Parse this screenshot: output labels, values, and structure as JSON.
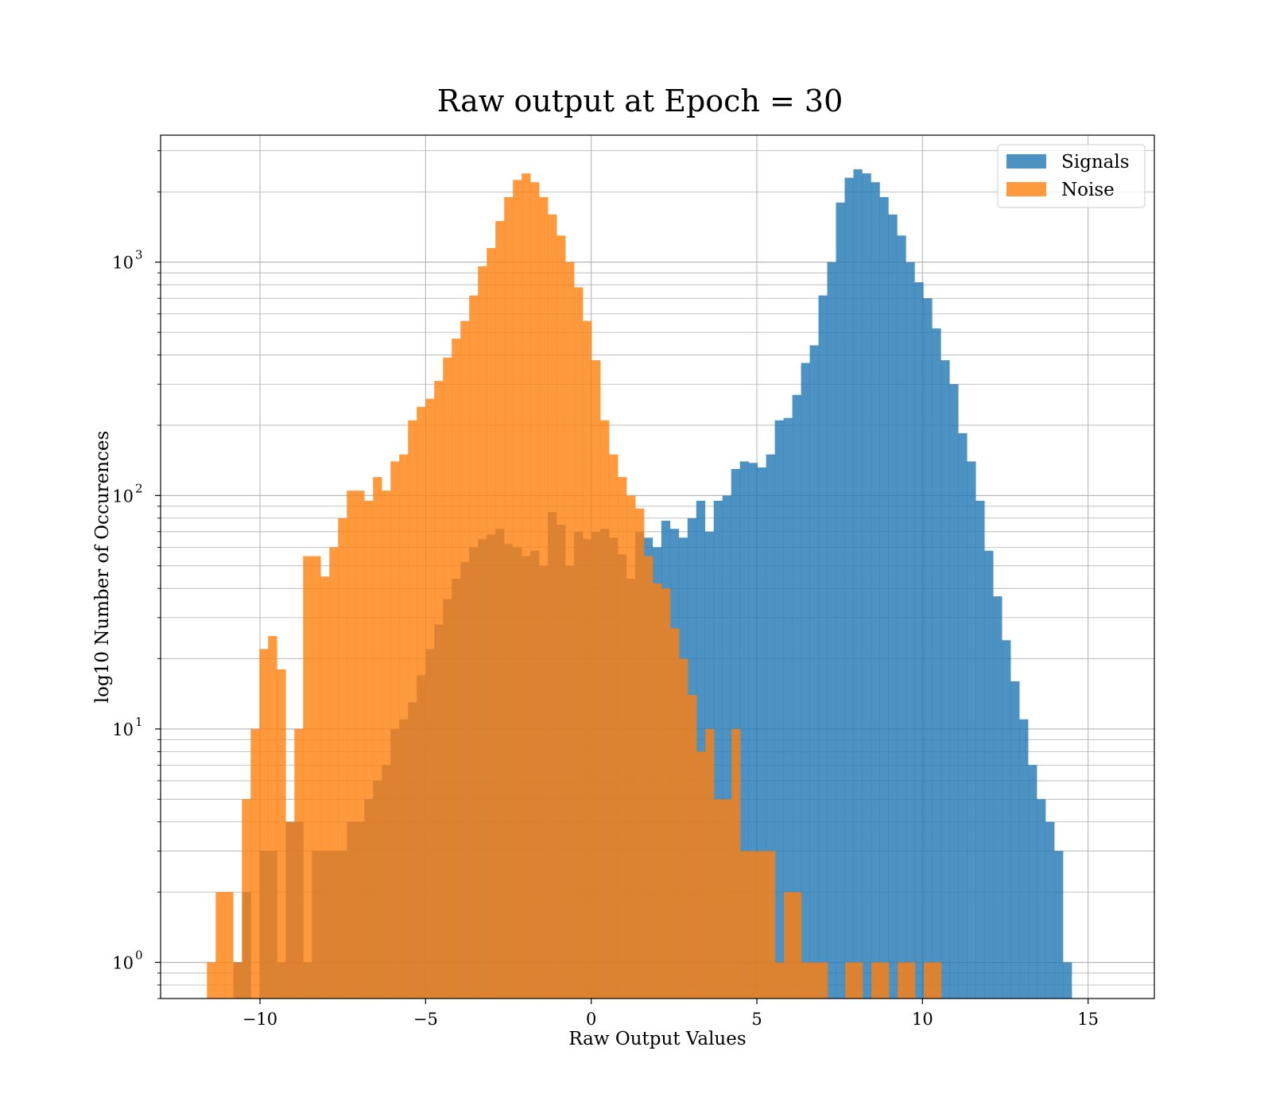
{
  "chart_data": {
    "type": "bar",
    "histogram": true,
    "title": "Raw output at Epoch = 30",
    "xlabel": "Raw Output Values",
    "ylabel": "log10 Number of Occurences",
    "xlim": [
      -13,
      17
    ],
    "ylim": [
      0.7,
      3500
    ],
    "yscale": "log",
    "grid": true,
    "legend": "top-right",
    "x_ticks": [
      {
        "value": -10,
        "label": "−10"
      },
      {
        "value": -5,
        "label": "−5"
      },
      {
        "value": 0,
        "label": "0"
      },
      {
        "value": 5,
        "label": "5"
      },
      {
        "value": 10,
        "label": "10"
      },
      {
        "value": 15,
        "label": "15"
      }
    ],
    "y_ticks": [
      {
        "value": 1,
        "base": "10",
        "exp": "0"
      },
      {
        "value": 10,
        "base": "10",
        "exp": "1"
      },
      {
        "value": 100,
        "base": "10",
        "exp": "2"
      },
      {
        "value": 1000,
        "base": "10",
        "exp": "3"
      }
    ],
    "series": [
      {
        "name": "Signals",
        "color": "#1f77b4",
        "opacity": 0.8,
        "bin_start": -10.8,
        "bin_width": 0.2636,
        "counts": [
          1,
          2,
          0,
          3,
          3,
          1,
          4,
          4,
          1,
          3,
          3,
          3,
          3,
          4,
          4,
          5,
          6,
          7,
          10,
          11,
          13,
          17,
          22,
          28,
          36,
          44,
          52,
          60,
          65,
          68,
          72,
          62,
          60,
          55,
          58,
          50,
          85,
          75,
          50,
          70,
          65,
          70,
          72,
          66,
          56,
          44,
          70,
          66,
          60,
          78,
          72,
          66,
          80,
          95,
          70,
          95,
          100,
          130,
          140,
          138,
          132,
          150,
          210,
          215,
          270,
          370,
          440,
          720,
          1000,
          1800,
          2300,
          2500,
          2400,
          2200,
          1900,
          1600,
          1300,
          1000,
          820,
          700,
          520,
          380,
          300,
          185,
          140,
          95,
          58,
          37,
          24,
          16,
          11,
          7,
          5,
          4,
          3,
          1
        ]
      },
      {
        "name": "Noise",
        "color": "#ff7f0e",
        "opacity": 0.8,
        "bin_start": -11.6,
        "bin_width": 0.2639,
        "counts": [
          1,
          2,
          2,
          1,
          5,
          10,
          22,
          25,
          18,
          4,
          10,
          55,
          55,
          45,
          60,
          80,
          105,
          105,
          95,
          120,
          105,
          140,
          150,
          210,
          240,
          260,
          310,
          390,
          470,
          560,
          720,
          960,
          1150,
          1500,
          1900,
          2250,
          2400,
          2200,
          1900,
          1600,
          1300,
          1000,
          780,
          560,
          380,
          210,
          150,
          120,
          100,
          88,
          55,
          42,
          40,
          27,
          20,
          14,
          8,
          10,
          5,
          5,
          10,
          3,
          3,
          3,
          3,
          1,
          2,
          2,
          1,
          1,
          1,
          0,
          0,
          1,
          1,
          0,
          1,
          1,
          0,
          1,
          1,
          0,
          1,
          1
        ]
      }
    ]
  }
}
